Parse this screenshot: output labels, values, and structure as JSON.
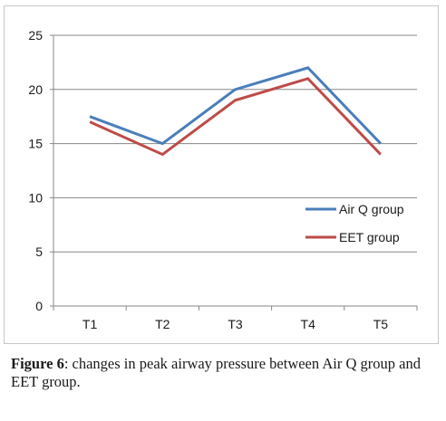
{
  "chart_data": {
    "type": "line",
    "categories": [
      "T1",
      "T2",
      "T3",
      "T4",
      "T5"
    ],
    "series": [
      {
        "name": "Air Q group",
        "values": [
          17.5,
          15,
          20,
          22,
          15
        ],
        "color": "#4a7ebb"
      },
      {
        "name": "EET group",
        "values": [
          17,
          14,
          19,
          21,
          14
        ],
        "color": "#be4b48"
      }
    ],
    "ylim": [
      0,
      25
    ],
    "yticks": [
      0,
      5,
      10,
      15,
      20,
      25
    ],
    "grid": "horizontal",
    "legend_position": "right",
    "title": "",
    "xlabel": "",
    "ylabel": ""
  },
  "caption": {
    "label": "Figure 6",
    "text": ": changes in peak airway pressure between Air Q group and EET group."
  }
}
